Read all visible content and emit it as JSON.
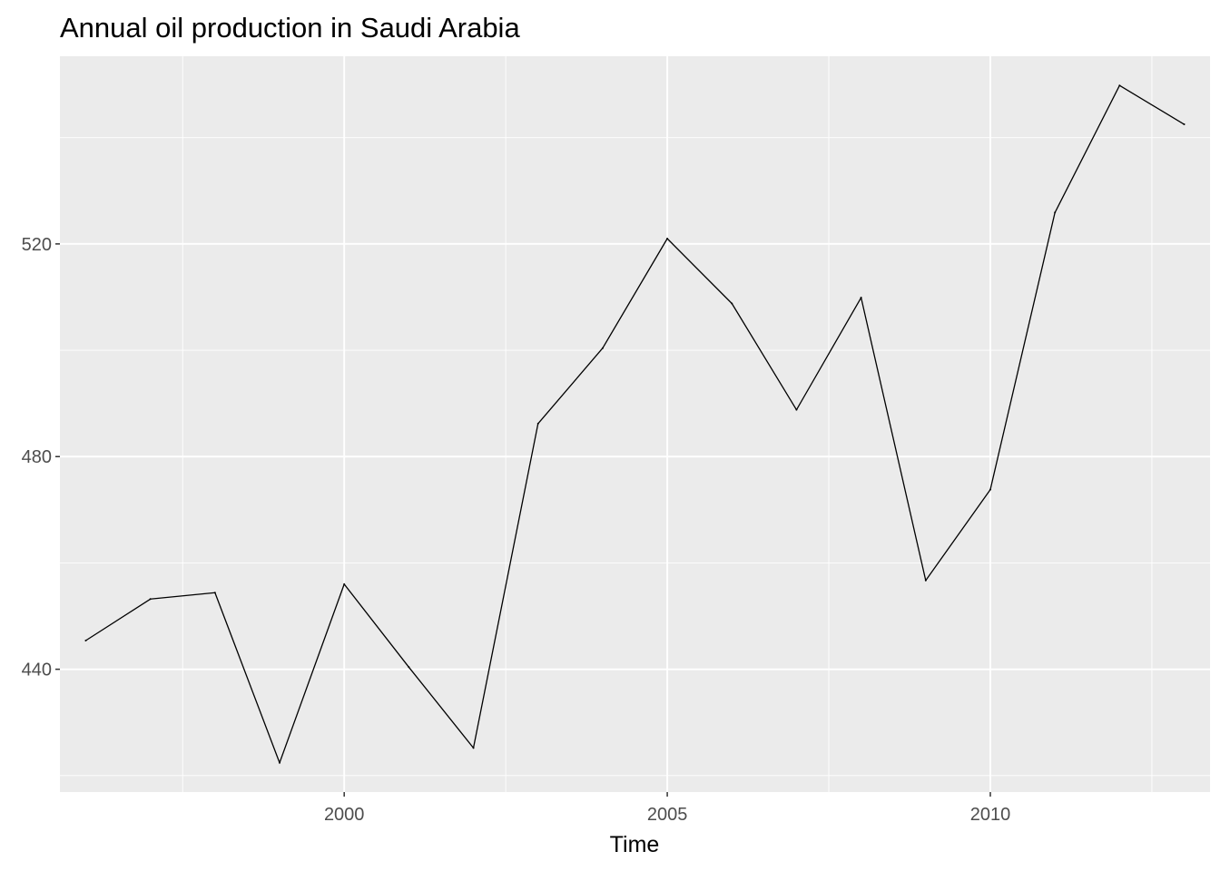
{
  "chart_data": {
    "type": "line",
    "title": "Annual oil production in Saudi Arabia",
    "xlabel": "Time",
    "ylabel": "",
    "x": [
      1996,
      1997,
      1998,
      1999,
      2000,
      2001,
      2002,
      2003,
      2004,
      2005,
      2006,
      2007,
      2008,
      2009,
      2010,
      2011,
      2012,
      2013
    ],
    "series": [
      {
        "values": [
          445.4,
          453.2,
          454.4,
          422.4,
          456.0,
          440.4,
          425.2,
          486.2,
          500.4,
          521.0,
          508.8,
          488.8,
          509.9,
          456.7,
          473.8,
          525.9,
          549.8,
          542.5
        ]
      }
    ],
    "xlim": [
      1995.6,
      2013.4
    ],
    "ylim": [
      416.9,
      555.3
    ],
    "x_ticks": [
      2000,
      2005,
      2010
    ],
    "x_minor_ticks": [
      1997.5,
      2002.5,
      2007.5,
      2012.5
    ],
    "y_ticks": [
      440,
      480,
      520
    ],
    "y_minor_ticks": [
      420,
      460,
      500,
      540
    ],
    "grid": true,
    "panel_background": "#EBEBEB",
    "grid_color": "#FFFFFF",
    "line_color": "#000000"
  }
}
